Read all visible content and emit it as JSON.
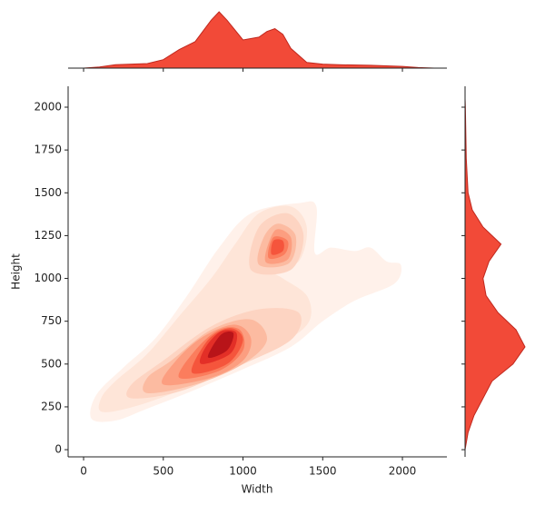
{
  "chart_data": {
    "type": "kde",
    "xlabel": "Width",
    "ylabel": "Height",
    "xlim": [
      -97,
      2279
    ],
    "ylim": [
      -42,
      2122
    ],
    "xticks": [
      0,
      500,
      1000,
      1500,
      2000
    ],
    "yticks": [
      0,
      250,
      500,
      750,
      1000,
      1250,
      1500,
      1750,
      2000
    ],
    "color": "#f24a38",
    "levels": [
      {
        "color": "#fff1ea",
        "polygons": [
          [
            [
              50,
              180
            ],
            [
              200,
              170
            ],
            [
              400,
              240
            ],
            [
              700,
              350
            ],
            [
              1000,
              470
            ],
            [
              1300,
              600
            ],
            [
              1500,
              750
            ],
            [
              1700,
              870
            ],
            [
              1950,
              970
            ],
            [
              1990,
              1080
            ],
            [
              1900,
              1100
            ],
            [
              1800,
              1180
            ],
            [
              1700,
              1160
            ],
            [
              1550,
              1180
            ],
            [
              1450,
              1150
            ],
            [
              1460,
              1420
            ],
            [
              1350,
              1440
            ],
            [
              1050,
              1380
            ],
            [
              850,
              1180
            ],
            [
              650,
              900
            ],
            [
              450,
              650
            ],
            [
              250,
              480
            ],
            [
              80,
              320
            ]
          ]
        ]
      },
      {
        "color": "#fee5d8",
        "polygons": [
          [
            [
              120,
              220
            ],
            [
              350,
              260
            ],
            [
              700,
              380
            ],
            [
              1050,
              520
            ],
            [
              1300,
              650
            ],
            [
              1420,
              760
            ],
            [
              1400,
              900
            ],
            [
              1250,
              1000
            ],
            [
              1180,
              1050
            ],
            [
              1350,
              1100
            ],
            [
              1400,
              1300
            ],
            [
              1300,
              1420
            ],
            [
              1100,
              1380
            ],
            [
              950,
              1200
            ],
            [
              800,
              1000
            ],
            [
              600,
              780
            ],
            [
              400,
              560
            ],
            [
              200,
              400
            ],
            [
              110,
              300
            ]
          ]
        ]
      },
      {
        "color": "#fdd4c2",
        "polygons": [
          [
            [
              300,
              300
            ],
            [
              600,
              340
            ],
            [
              950,
              480
            ],
            [
              1300,
              640
            ],
            [
              1350,
              800
            ],
            [
              1100,
              820
            ],
            [
              800,
              720
            ],
            [
              500,
              520
            ],
            [
              300,
              380
            ]
          ],
          [
            [
              1050,
              1050
            ],
            [
              1300,
              1050
            ],
            [
              1380,
              1250
            ],
            [
              1280,
              1380
            ],
            [
              1100,
              1300
            ]
          ]
        ]
      },
      {
        "color": "#fcbba1",
        "polygons": [
          [
            [
              400,
              330
            ],
            [
              700,
              380
            ],
            [
              1000,
              500
            ],
            [
              1150,
              640
            ],
            [
              1050,
              760
            ],
            [
              800,
              700
            ],
            [
              550,
              520
            ],
            [
              400,
              420
            ]
          ],
          [
            [
              1100,
              1080
            ],
            [
              1290,
              1090
            ],
            [
              1330,
              1250
            ],
            [
              1220,
              1320
            ],
            [
              1130,
              1240
            ]
          ]
        ]
      },
      {
        "color": "#fc9e80",
        "polygons": [
          [
            [
              500,
              380
            ],
            [
              800,
              420
            ],
            [
              1000,
              520
            ],
            [
              1050,
              650
            ],
            [
              950,
              730
            ],
            [
              750,
              660
            ],
            [
              580,
              520
            ]
          ],
          [
            [
              1140,
              1100
            ],
            [
              1280,
              1110
            ],
            [
              1300,
              1240
            ],
            [
              1200,
              1280
            ]
          ]
        ]
      },
      {
        "color": "#fb7d5d",
        "polygons": [
          [
            [
              600,
              420
            ],
            [
              850,
              460
            ],
            [
              1000,
              580
            ],
            [
              980,
              700
            ],
            [
              850,
              700
            ],
            [
              700,
              580
            ]
          ],
          [
            [
              1160,
              1120
            ],
            [
              1260,
              1140
            ],
            [
              1280,
              1220
            ],
            [
              1190,
              1240
            ]
          ]
        ]
      },
      {
        "color": "#f5553c",
        "polygons": [
          [
            [
              680,
              450
            ],
            [
              900,
              500
            ],
            [
              1000,
              640
            ],
            [
              920,
              710
            ],
            [
              780,
              640
            ]
          ],
          [
            [
              1180,
              1140
            ],
            [
              1250,
              1160
            ],
            [
              1250,
              1220
            ],
            [
              1190,
              1220
            ]
          ]
        ]
      },
      {
        "color": "#e32f27",
        "polygons": [
          [
            [
              740,
              500
            ],
            [
              920,
              560
            ],
            [
              960,
              680
            ],
            [
              860,
              690
            ],
            [
              760,
              590
            ]
          ]
        ]
      },
      {
        "color": "#b81419",
        "polygons": [
          [
            [
              780,
              540
            ],
            [
              900,
              580
            ],
            [
              940,
              680
            ],
            [
              860,
              670
            ]
          ]
        ]
      }
    ],
    "marginal_x": {
      "x": [
        0,
        100,
        200,
        300,
        400,
        500,
        600,
        700,
        800,
        850,
        900,
        1000,
        1100,
        1150,
        1200,
        1250,
        1300,
        1400,
        1500,
        1600,
        1800,
        2000,
        2100,
        2200
      ],
      "density": [
        0,
        0.02,
        0.06,
        0.07,
        0.08,
        0.15,
        0.33,
        0.47,
        0.85,
        1.0,
        0.85,
        0.5,
        0.55,
        0.65,
        0.7,
        0.6,
        0.35,
        0.1,
        0.07,
        0.06,
        0.05,
        0.03,
        0.01,
        0
      ]
    },
    "marginal_y": {
      "y": [
        0,
        100,
        200,
        300,
        400,
        500,
        600,
        700,
        800,
        900,
        1000,
        1100,
        1200,
        1300,
        1400,
        1500,
        1700,
        2000,
        2050
      ],
      "density": [
        0,
        0.05,
        0.15,
        0.3,
        0.45,
        0.8,
        1.0,
        0.85,
        0.55,
        0.35,
        0.3,
        0.4,
        0.6,
        0.3,
        0.12,
        0.05,
        0.02,
        0.005,
        0
      ]
    }
  }
}
